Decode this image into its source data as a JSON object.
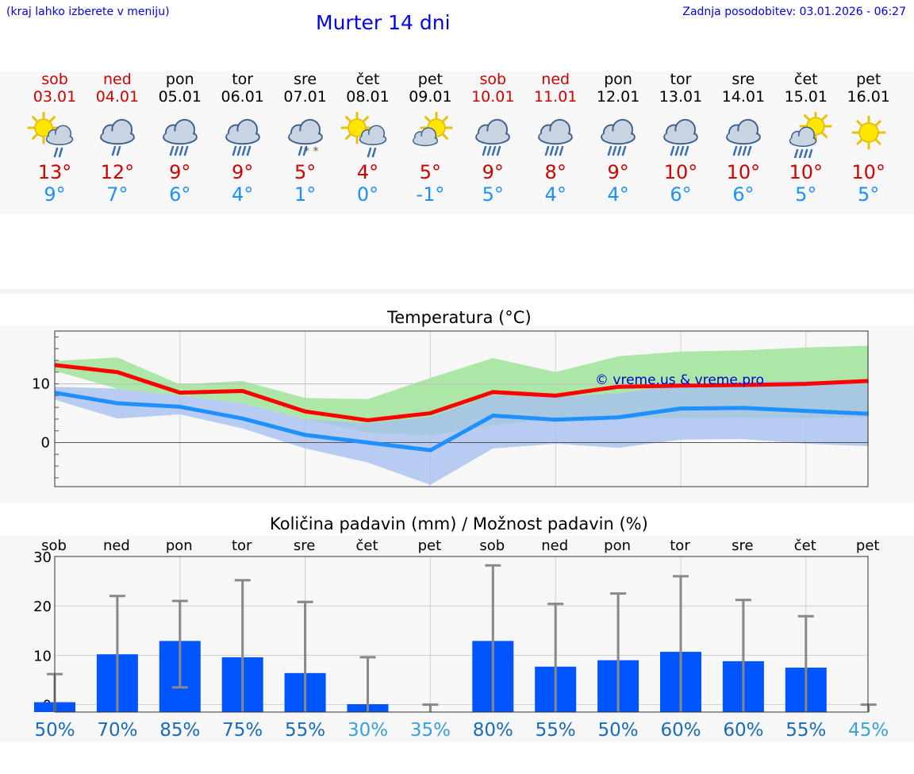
{
  "header": {
    "hint": "(kraj lahko izberete v meniju)",
    "title": "Murter 14 dni",
    "updated": "Zadnja posodobitev: 03.01.2026 - 06:27"
  },
  "colors": {
    "weekend": "#cc0000",
    "weekday": "#000000",
    "max": "#cc0000",
    "min": "#1e90ff"
  },
  "days": [
    {
      "name": "sob",
      "date": "03.01",
      "weekend": true,
      "icon": "sun-cloud-rain-icon",
      "tmax": "13°",
      "tmin": "9°"
    },
    {
      "name": "ned",
      "date": "04.01",
      "weekend": true,
      "icon": "cloud-rain-icon",
      "tmax": "12°",
      "tmin": "7°"
    },
    {
      "name": "pon",
      "date": "05.01",
      "weekend": false,
      "icon": "cloud-heavy-rain-icon",
      "tmax": "9°",
      "tmin": "6°"
    },
    {
      "name": "tor",
      "date": "06.01",
      "weekend": false,
      "icon": "cloud-heavy-rain-icon",
      "tmax": "9°",
      "tmin": "4°"
    },
    {
      "name": "sre",
      "date": "07.01",
      "weekend": false,
      "icon": "cloud-sleet-icon",
      "tmax": "5°",
      "tmin": "1°"
    },
    {
      "name": "čet",
      "date": "08.01",
      "weekend": false,
      "icon": "sun-cloud-rain-icon",
      "tmax": "4°",
      "tmin": "0°"
    },
    {
      "name": "pet",
      "date": "09.01",
      "weekend": false,
      "icon": "sun-behind-cloud-icon",
      "tmax": "5°",
      "tmin": "-1°"
    },
    {
      "name": "sob",
      "date": "10.01",
      "weekend": true,
      "icon": "cloud-heavy-rain-icon",
      "tmax": "9°",
      "tmin": "5°"
    },
    {
      "name": "ned",
      "date": "11.01",
      "weekend": true,
      "icon": "cloud-heavy-rain-icon",
      "tmax": "8°",
      "tmin": "4°"
    },
    {
      "name": "pon",
      "date": "12.01",
      "weekend": false,
      "icon": "cloud-heavy-rain-icon",
      "tmax": "9°",
      "tmin": "4°"
    },
    {
      "name": "tor",
      "date": "13.01",
      "weekend": false,
      "icon": "cloud-heavy-rain-icon",
      "tmax": "10°",
      "tmin": "6°"
    },
    {
      "name": "sre",
      "date": "14.01",
      "weekend": false,
      "icon": "cloud-heavy-rain-icon",
      "tmax": "10°",
      "tmin": "6°"
    },
    {
      "name": "čet",
      "date": "15.01",
      "weekend": false,
      "icon": "sun-cloud-heavy-rain-icon",
      "tmax": "10°",
      "tmin": "5°"
    },
    {
      "name": "pet",
      "date": "16.01",
      "weekend": false,
      "icon": "sun-icon",
      "tmax": "10°",
      "tmin": "5°"
    }
  ],
  "chart_data": [
    {
      "type": "line",
      "title": "Temperatura (°C)",
      "watermark": "© vreme.us & vreme.pro",
      "ylim": [
        -7.5,
        19
      ],
      "yticks": [
        0,
        10
      ],
      "x": [
        0,
        1,
        2,
        3,
        4,
        5,
        6,
        7,
        8,
        9,
        10,
        11,
        12,
        13
      ],
      "series": [
        {
          "name": "max",
          "color": "#ff0000",
          "values": [
            13.2,
            12.0,
            8.5,
            8.8,
            5.3,
            3.8,
            5.0,
            8.6,
            8.0,
            9.5,
            9.7,
            9.8,
            10.0,
            10.5
          ]
        },
        {
          "name": "min",
          "color": "#1e90ff",
          "values": [
            8.5,
            6.7,
            6.1,
            4.1,
            1.3,
            0.0,
            -1.3,
            4.6,
            3.9,
            4.3,
            5.8,
            5.9,
            5.4,
            4.9
          ]
        }
      ],
      "bands": [
        {
          "name": "max-range",
          "color": "#a8e6a3",
          "upper": [
            13.9,
            14.5,
            9.9,
            10.5,
            7.6,
            7.4,
            11.0,
            14.4,
            12.0,
            14.7,
            15.5,
            15.7,
            16.2,
            16.5
          ],
          "lower": [
            12.2,
            9.2,
            8.0,
            6.7,
            4.0,
            1.7,
            1.2,
            3.0,
            4.0,
            4.1,
            4.2,
            4.2,
            4.2,
            4.3
          ]
        },
        {
          "name": "min-range",
          "color": "#a8c0f0",
          "upper": [
            9.5,
            9.2,
            8.0,
            6.7,
            4.0,
            3.3,
            4.4,
            8.1,
            7.8,
            8.4,
            9.9,
            10.4,
            10.5,
            10.5
          ],
          "lower": [
            7.3,
            4.1,
            4.8,
            2.4,
            -1.0,
            -3.4,
            -7.2,
            -1.0,
            -0.2,
            -0.9,
            0.5,
            0.6,
            -0.2,
            -0.6
          ]
        }
      ]
    },
    {
      "type": "bar",
      "title": "Količina padavin (mm) / Možnost padavin (%)",
      "categories": [
        "sob",
        "ned",
        "pon",
        "tor",
        "sre",
        "čet",
        "pet",
        "sob",
        "ned",
        "pon",
        "tor",
        "sre",
        "čet",
        "pet"
      ],
      "ylim": [
        -1.5,
        30
      ],
      "yticks": [
        0,
        10,
        20,
        30
      ],
      "values": [
        0.5,
        10.2,
        12.9,
        9.6,
        6.4,
        0.1,
        0,
        12.9,
        7.7,
        9.0,
        10.7,
        8.8,
        7.5,
        0
      ],
      "error_low": [
        0,
        0,
        3.5,
        0,
        0,
        0,
        0,
        0,
        0,
        0,
        0,
        0,
        0,
        0
      ],
      "error_high": [
        6.2,
        22.0,
        21.0,
        25.2,
        20.8,
        9.6,
        0,
        28.2,
        20.4,
        22.5,
        26.0,
        21.2,
        17.9,
        0
      ],
      "probabilities": [
        "50%",
        "70%",
        "85%",
        "75%",
        "55%",
        "30%",
        "35%",
        "80%",
        "55%",
        "50%",
        "60%",
        "60%",
        "55%",
        "45%"
      ],
      "prob_colors": [
        "#1a6bb8",
        "#1a6bb8",
        "#1a6bb8",
        "#1a6bb8",
        "#1a6bb8",
        "#3aa0d8",
        "#3aa0d8",
        "#1a6bb8",
        "#1a6bb8",
        "#1a6bb8",
        "#1a6bb8",
        "#1a6bb8",
        "#1a6bb8",
        "#3aa0d8"
      ]
    }
  ]
}
